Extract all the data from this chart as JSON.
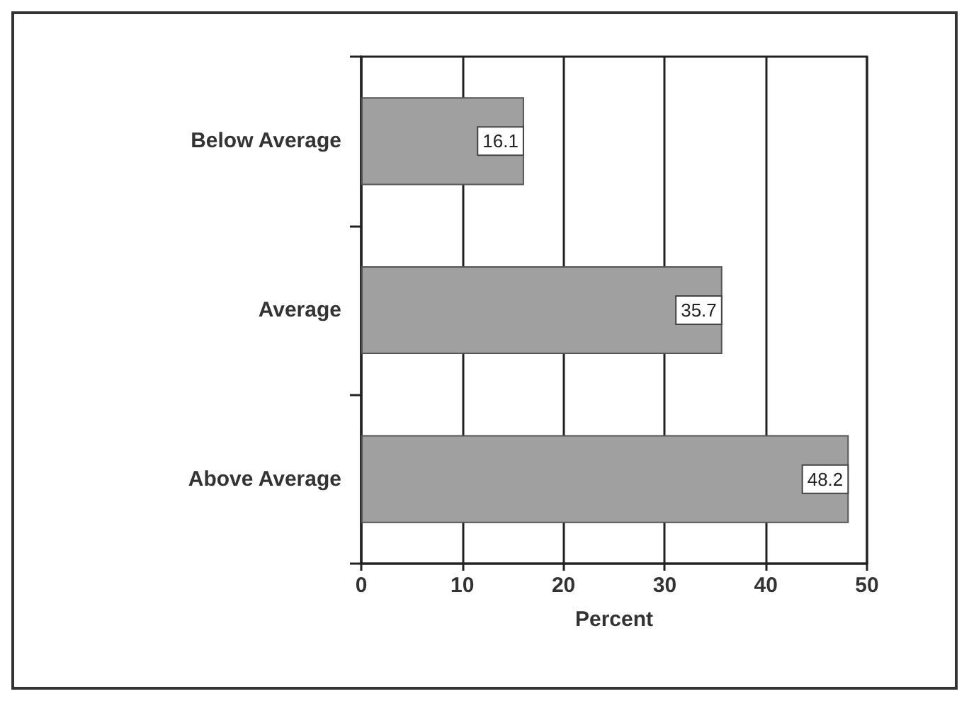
{
  "chart_data": {
    "type": "bar",
    "orientation": "horizontal",
    "categories": [
      "Below Average",
      "Average",
      "Above Average"
    ],
    "values": [
      16.1,
      35.7,
      48.2
    ],
    "color": "#a0a0a0",
    "xlabel": "Percent",
    "xlim": [
      0,
      50
    ],
    "xticks": [
      0,
      10,
      20,
      30,
      40,
      50
    ],
    "grid": "x",
    "data_labels": true
  }
}
